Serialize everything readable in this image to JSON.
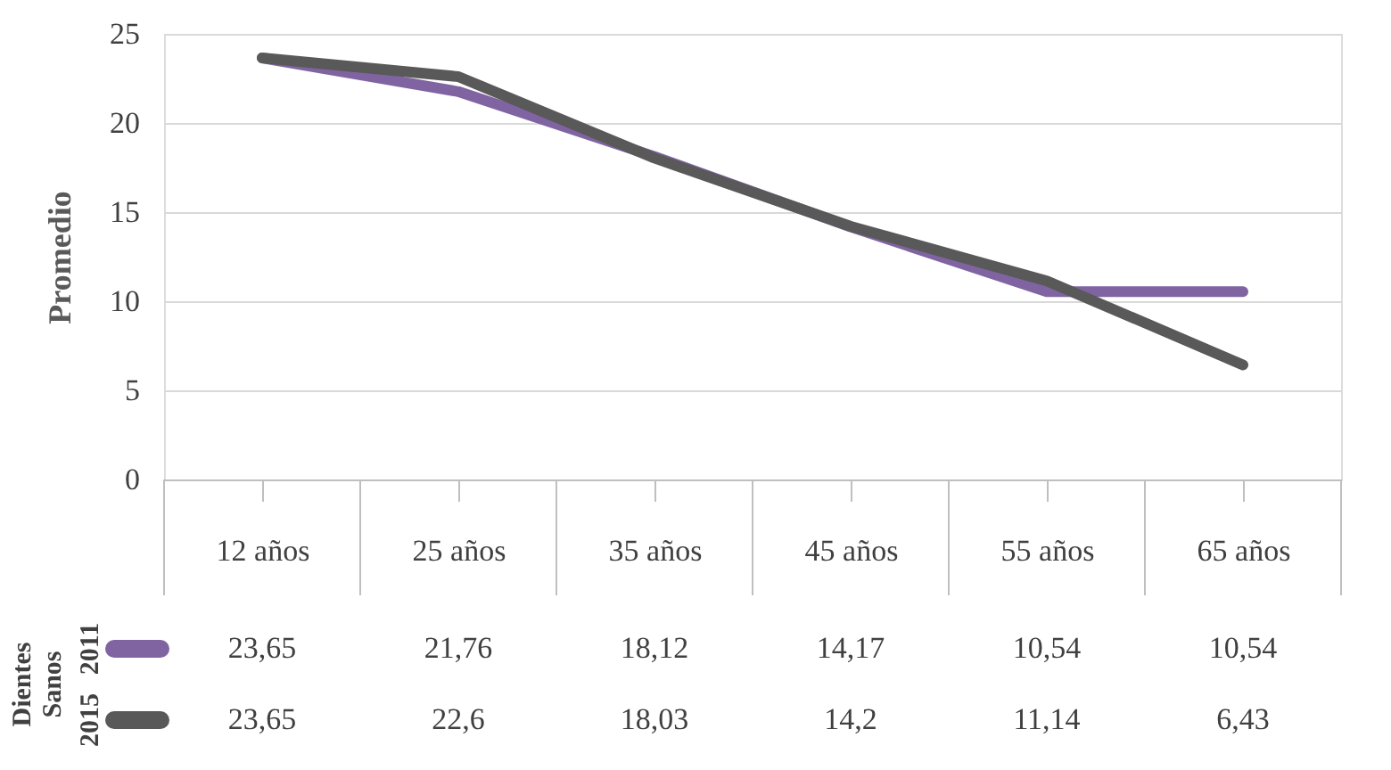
{
  "chart_data": {
    "type": "line",
    "ylabel": "Promedio",
    "legend_title": "Dientes Sanos",
    "legend": "bottom",
    "grid": "y",
    "marker": "none",
    "line_style": "solid",
    "categories": [
      "12 años",
      "25 años",
      "35 años",
      "45 años",
      "55 años",
      "65 años"
    ],
    "ylim": [
      0,
      25
    ],
    "yticks": [
      0,
      5,
      10,
      15,
      20,
      25
    ],
    "series": [
      {
        "name": "2011",
        "color": "#8064a2",
        "values": [
          23.65,
          21.76,
          18.12,
          14.17,
          10.54,
          10.54
        ],
        "value_labels": [
          "23,65",
          "21,76",
          "18,12",
          "14,17",
          "10,54",
          "10,54"
        ]
      },
      {
        "name": "2015",
        "color": "#595959",
        "values": [
          23.65,
          22.6,
          18.03,
          14.2,
          11.14,
          6.43
        ],
        "value_labels": [
          "23,65",
          "22,6",
          "18,03",
          "14,2",
          "11,14",
          "6,43"
        ]
      }
    ]
  }
}
